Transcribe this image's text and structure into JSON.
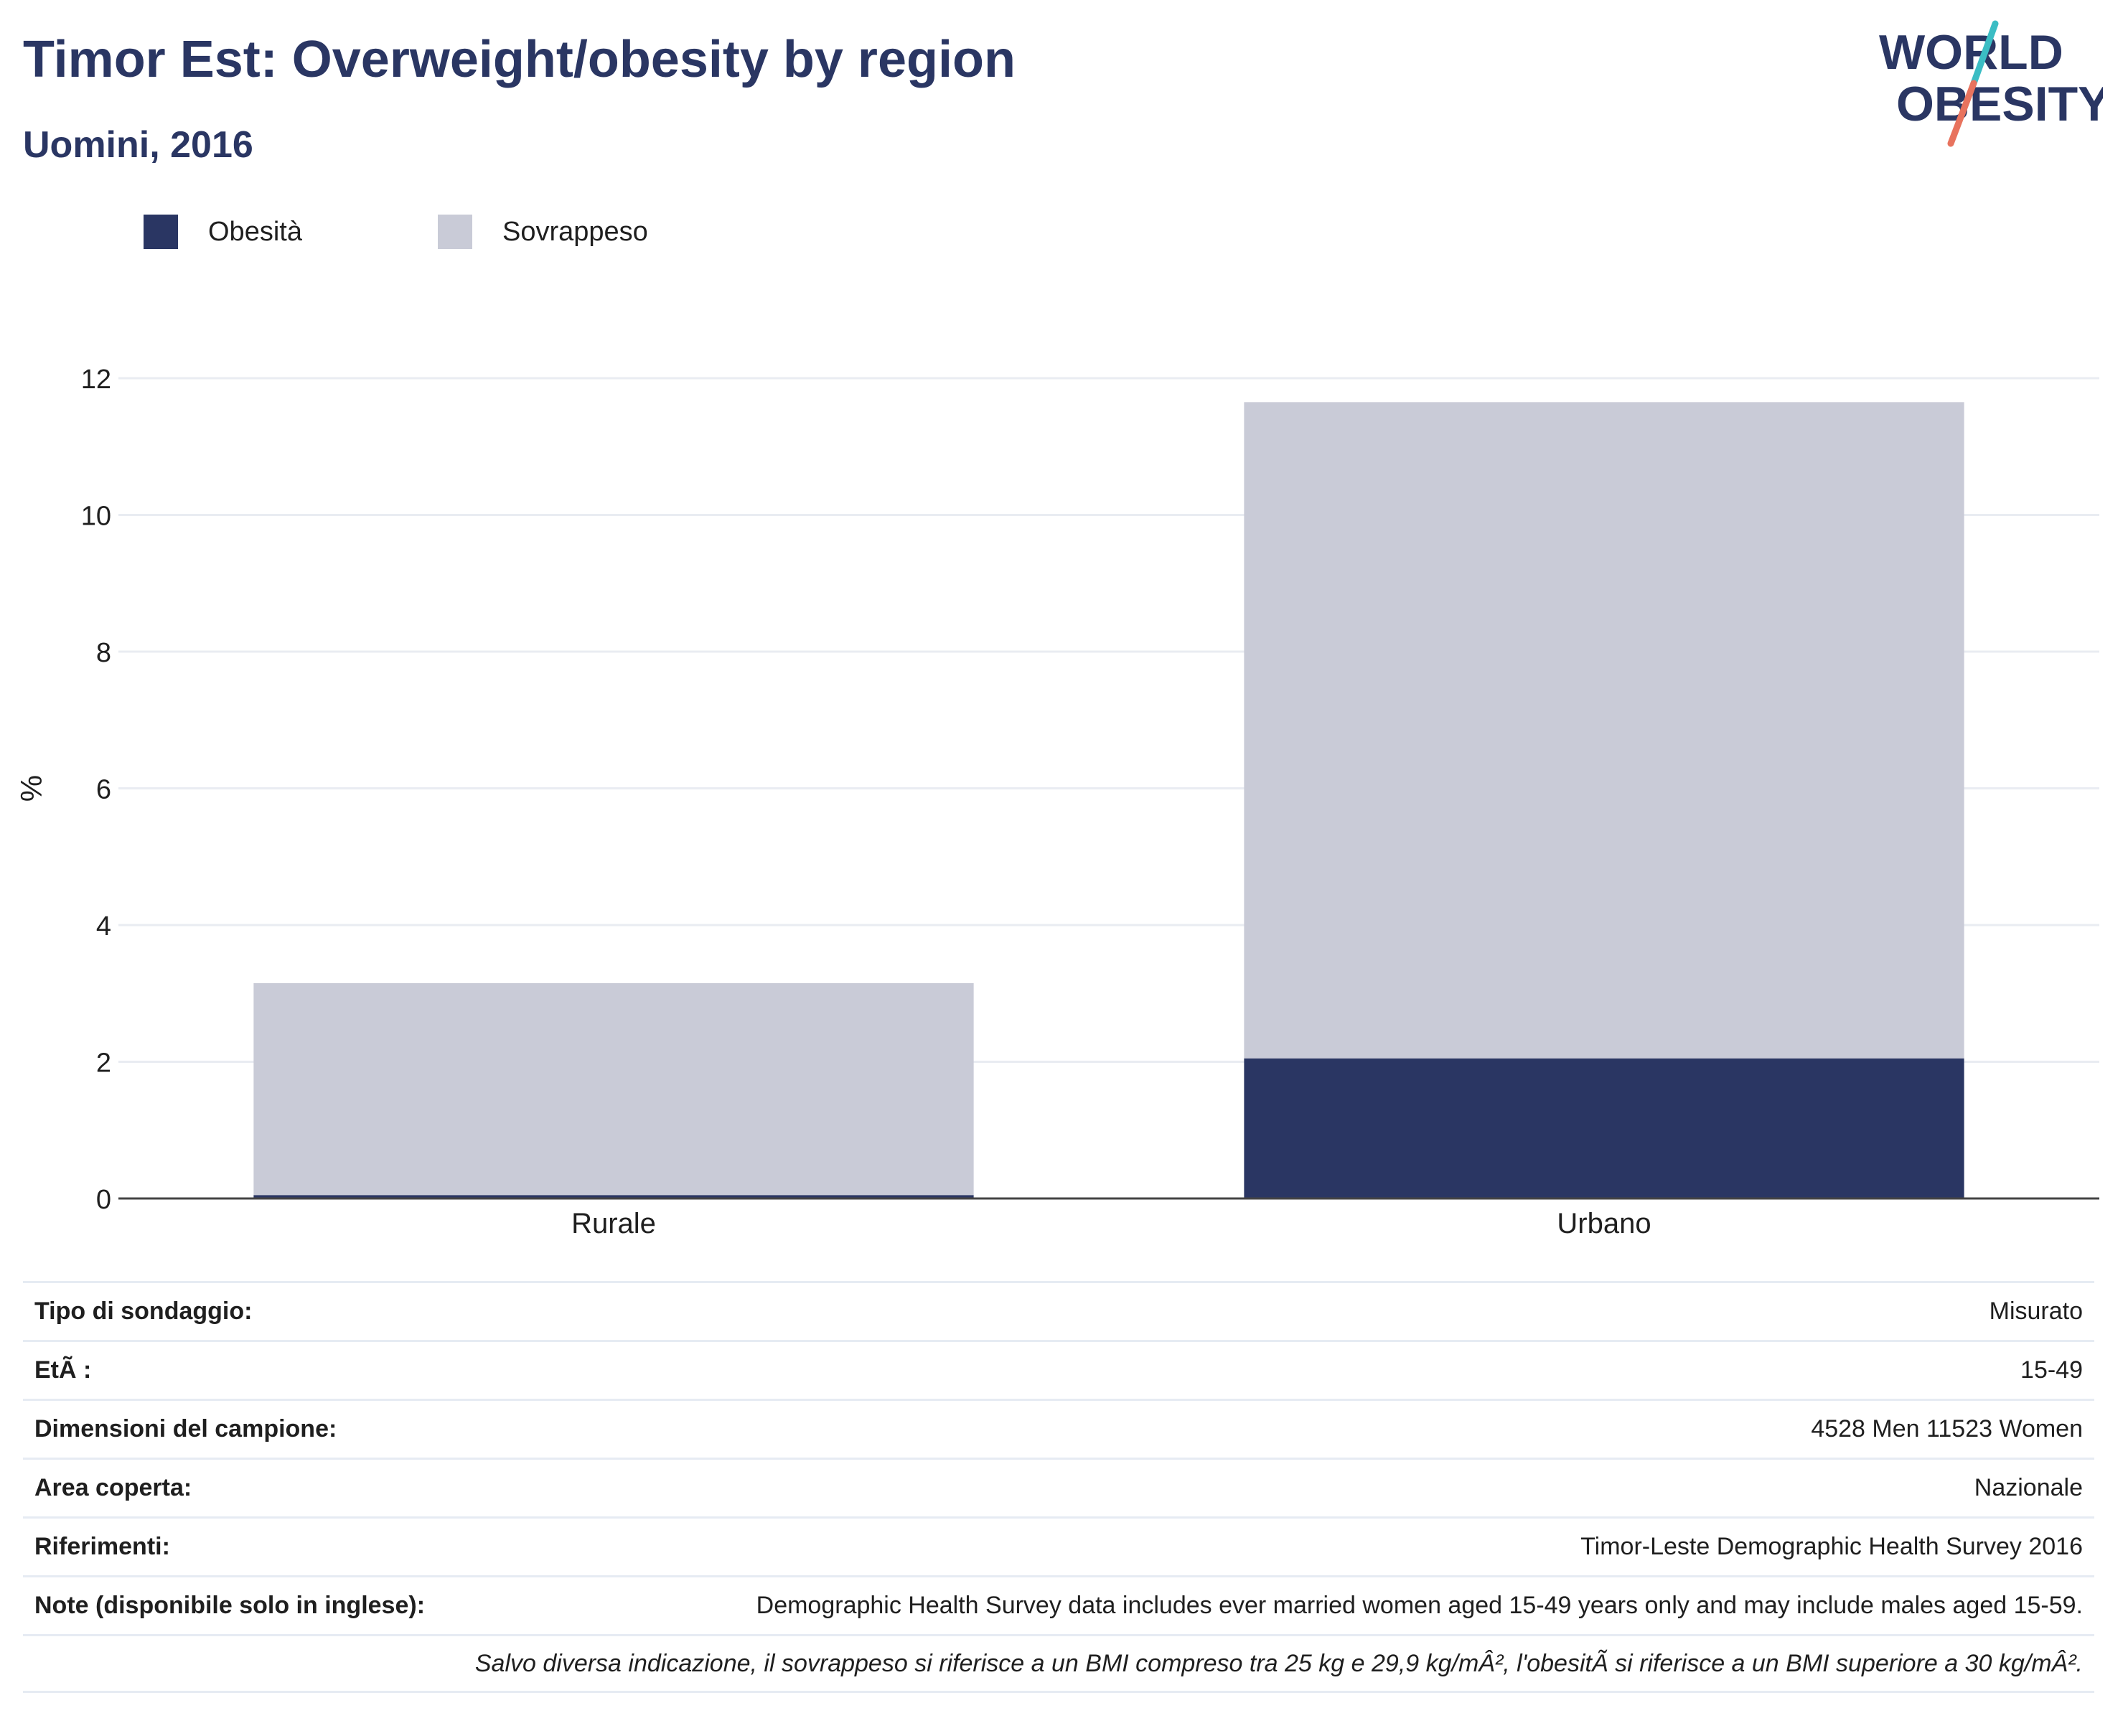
{
  "header": {
    "title": "Timor Est: Overweight/obesity by region",
    "subtitle": "Uomini, 2016"
  },
  "logo": {
    "line1": "WORLD",
    "line2": "OBESITY"
  },
  "legend": [
    {
      "label": "Obesità",
      "color": "#2a3663"
    },
    {
      "label": "Sovrappeso",
      "color": "#c9cbd7"
    }
  ],
  "chart_data": {
    "type": "bar",
    "stacked": true,
    "categories": [
      "Rurale",
      "Urbano"
    ],
    "series": [
      {
        "name": "Obesità",
        "color": "#2a3663",
        "values": [
          0.05,
          2.05
        ]
      },
      {
        "name": "Sovrappeso",
        "color": "#c9cbd7",
        "values": [
          3.1,
          9.6
        ]
      }
    ],
    "ylabel": "%",
    "ylim": [
      0,
      12
    ],
    "yticks": [
      0,
      2,
      4,
      6,
      8,
      10,
      12
    ],
    "grid": true,
    "legend_position": "top-left"
  },
  "meta": {
    "rows": [
      {
        "label": "Tipo di sondaggio:",
        "value": "Misurato"
      },
      {
        "label": "EtÃ :",
        "value": "15-49"
      },
      {
        "label": "Dimensioni del campione:",
        "value": "4528 Men 11523 Women"
      },
      {
        "label": "Area coperta:",
        "value": "Nazionale"
      },
      {
        "label": "Riferimenti:",
        "value": "Timor-Leste Demographic Health Survey 2016"
      },
      {
        "label": "Note (disponibile solo in inglese):",
        "value": "Demographic Health Survey data includes ever married women aged 15-49 years only and may include males aged 15-59."
      }
    ],
    "footnote": "Salvo diversa indicazione, il sovrappeso si riferisce a un BMI compreso tra 25 kg e 29,9 kg/mÂ², l'obesitÃ  si riferisce a un BMI superiore a 30 kg/mÂ²."
  }
}
